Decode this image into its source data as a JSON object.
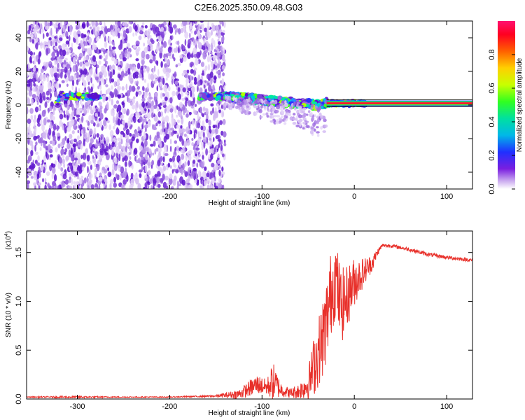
{
  "title": "C2E6.2025.350.09.48.G03",
  "chart_data": [
    {
      "type": "heatmap",
      "xlabel": "Height of straight line (km)",
      "ylabel": "Frequency (Hz)",
      "xlim": [
        -355,
        128
      ],
      "ylim": [
        -50,
        50
      ],
      "xticks": [
        -300,
        -200,
        -100,
        0,
        100
      ],
      "xtick_labels": [
        "-300",
        "-200",
        "-100",
        "0",
        "100"
      ],
      "yticks": [
        -40,
        -20,
        0,
        20,
        40
      ],
      "ytick_labels": [
        "-40",
        "-20",
        "0",
        "20",
        "40"
      ],
      "colorbar": {
        "label": "Normalized spectral amplitude",
        "ticks": [
          0.0,
          0.2,
          0.4,
          0.6,
          0.8
        ],
        "tick_labels": [
          "0.0",
          "0.2",
          "0.4",
          "0.6",
          "0.8"
        ],
        "range": [
          0,
          1
        ]
      },
      "ridge": {
        "description_points_x": [
          -320,
          -280,
          -165,
          -140,
          -120,
          -100,
          -80,
          -60,
          -40,
          -30,
          -10,
          0,
          10,
          128
        ],
        "description_points_freq": [
          5,
          5,
          5,
          5,
          4,
          3,
          2,
          1,
          0,
          1,
          1,
          1,
          1,
          1
        ]
      }
    },
    {
      "type": "line",
      "xlabel": "Height of straight line (km)",
      "ylabel": "SNR (10 * v/v)",
      "y_multiplier_label": "(x10",
      "y_multiplier_exp": "4",
      "xlim": [
        -355,
        128
      ],
      "ylim": [
        0,
        1.72
      ],
      "xticks": [
        -300,
        -200,
        -100,
        0,
        100
      ],
      "xtick_labels": [
        "-300",
        "-200",
        "-100",
        "0",
        "100"
      ],
      "yticks": [
        0.0,
        0.5,
        1.0,
        1.5
      ],
      "ytick_labels": [
        "0.0",
        "0.5",
        "1.0",
        "1.5"
      ],
      "series": [
        {
          "name": "SNR",
          "color": "#e8302a",
          "x": [
            -355,
            -300,
            -250,
            -200,
            -150,
            -125,
            -115,
            -105,
            -95,
            -88,
            -80,
            -70,
            -60,
            -50,
            -45,
            -40,
            -35,
            -30,
            -25,
            -20,
            -15,
            -10,
            -5,
            0,
            10,
            20,
            25,
            30,
            40,
            60,
            80,
            100,
            128
          ],
          "y": [
            0.02,
            0.02,
            0.02,
            0.02,
            0.03,
            0.05,
            0.1,
            0.15,
            0.12,
            0.18,
            0.1,
            0.06,
            0.08,
            0.15,
            0.3,
            0.45,
            0.6,
            0.8,
            1.1,
            1.25,
            0.95,
            1.0,
            1.1,
            1.2,
            1.3,
            1.4,
            1.5,
            1.57,
            1.57,
            1.53,
            1.48,
            1.45,
            1.42
          ],
          "noise": [
            0.005,
            0.01,
            0.005,
            0.005,
            0.01,
            0.05,
            0.08,
            0.1,
            0.08,
            0.2,
            0.08,
            0.05,
            0.08,
            0.15,
            0.3,
            0.35,
            0.4,
            0.45,
            0.45,
            0.4,
            0.4,
            0.35,
            0.3,
            0.25,
            0.15,
            0.08,
            0.04,
            0.02,
            0.02,
            0.02,
            0.02,
            0.02,
            0.02
          ]
        }
      ]
    }
  ],
  "colors": {
    "background": "#ffffff",
    "axis": "#000000",
    "snr_line": "#e8302a"
  }
}
